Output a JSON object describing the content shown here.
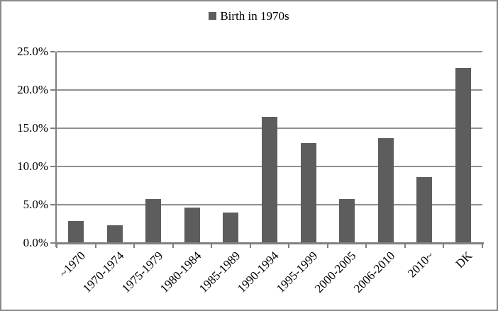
{
  "legend": {
    "label": "Birth in 1970s",
    "marker_color": "#5d5d5d"
  },
  "colors": {
    "bar": "#5d5d5d",
    "gridline": "#919191",
    "axis": "#808080",
    "frame_border": "#8a8a8a",
    "text": "#000000"
  },
  "chart_data": {
    "type": "bar",
    "title": "",
    "xlabel": "",
    "ylabel": "",
    "categories": [
      "~1970",
      "1970-1974",
      "1975-1979",
      "1980-1984",
      "1985-1989",
      "1990-1994",
      "1995-1999",
      "2000-2005",
      "2006-2010",
      "2010~",
      "DK"
    ],
    "values": [
      2.9,
      2.3,
      5.7,
      4.6,
      4.0,
      16.5,
      13.1,
      5.7,
      13.7,
      8.6,
      22.9
    ],
    "series": [
      {
        "name": "Birth in 1970s",
        "values": [
          2.9,
          2.3,
          5.7,
          4.6,
          4.0,
          16.5,
          13.1,
          5.7,
          13.7,
          8.6,
          22.9
        ]
      }
    ],
    "value_unit": "percent",
    "ylim": [
      0,
      25
    ],
    "ytick_step": 5,
    "ytick_labels": [
      "0.0%",
      "5.0%",
      "10.0%",
      "15.0%",
      "20.0%",
      "25.0%"
    ],
    "grid": true,
    "legend_position": "top-center",
    "xlabel_rotation_deg": 45
  }
}
